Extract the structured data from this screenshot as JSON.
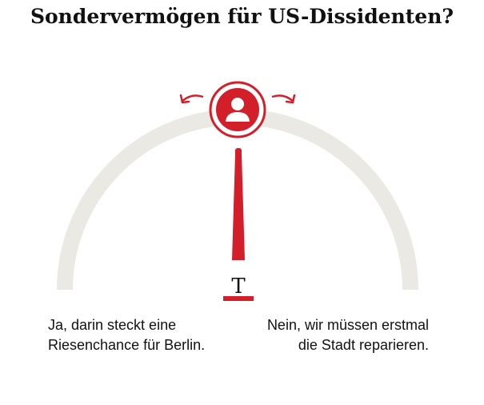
{
  "title": "Sondervermögen für US-Dissidenten?",
  "answers": {
    "left": "Ja, darin steckt eine Riesenchance für Berlin.",
    "right": "Nein, wir müssen erstmal die Stadt reparieren."
  },
  "indicator_label": "T",
  "gauge_value": 0.5,
  "icons": {
    "user": "user-icon",
    "arrow_left": "arrow-left-icon",
    "arrow_right": "arrow-right-icon"
  },
  "colors": {
    "accent": "#d21f2a",
    "track": "#ebe9e4",
    "text": "#111111"
  }
}
